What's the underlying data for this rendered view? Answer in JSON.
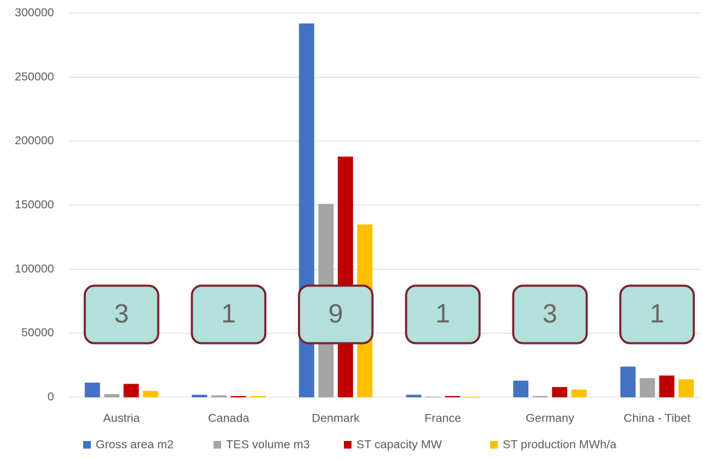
{
  "chart_data": {
    "type": "bar",
    "categories": [
      "Austria",
      "Canada",
      "Denmark",
      "France",
      "Germany",
      "China - Tibet"
    ],
    "series": [
      {
        "name": "Gross area m2",
        "color": "#4472c4",
        "values": [
          11500,
          2000,
          292000,
          2000,
          13000,
          24000
        ]
      },
      {
        "name": "TES volume m3",
        "color": "#a5a5a5",
        "values": [
          2500,
          1500,
          151000,
          500,
          1000,
          15000
        ]
      },
      {
        "name": "ST capacity MW",
        "color": "#c00000",
        "values": [
          10500,
          1000,
          188000,
          1000,
          8000,
          17000
        ]
      },
      {
        "name": "ST production MWh/a",
        "color": "#ffc000",
        "values": [
          5000,
          1000,
          135000,
          500,
          6000,
          14000
        ]
      }
    ],
    "annotations": [
      3,
      1,
      9,
      1,
      3,
      1
    ],
    "ylim": [
      0,
      300000
    ],
    "yticks": [
      0,
      50000,
      100000,
      150000,
      200000,
      250000,
      300000
    ],
    "grid": true,
    "legend": "bottom"
  }
}
